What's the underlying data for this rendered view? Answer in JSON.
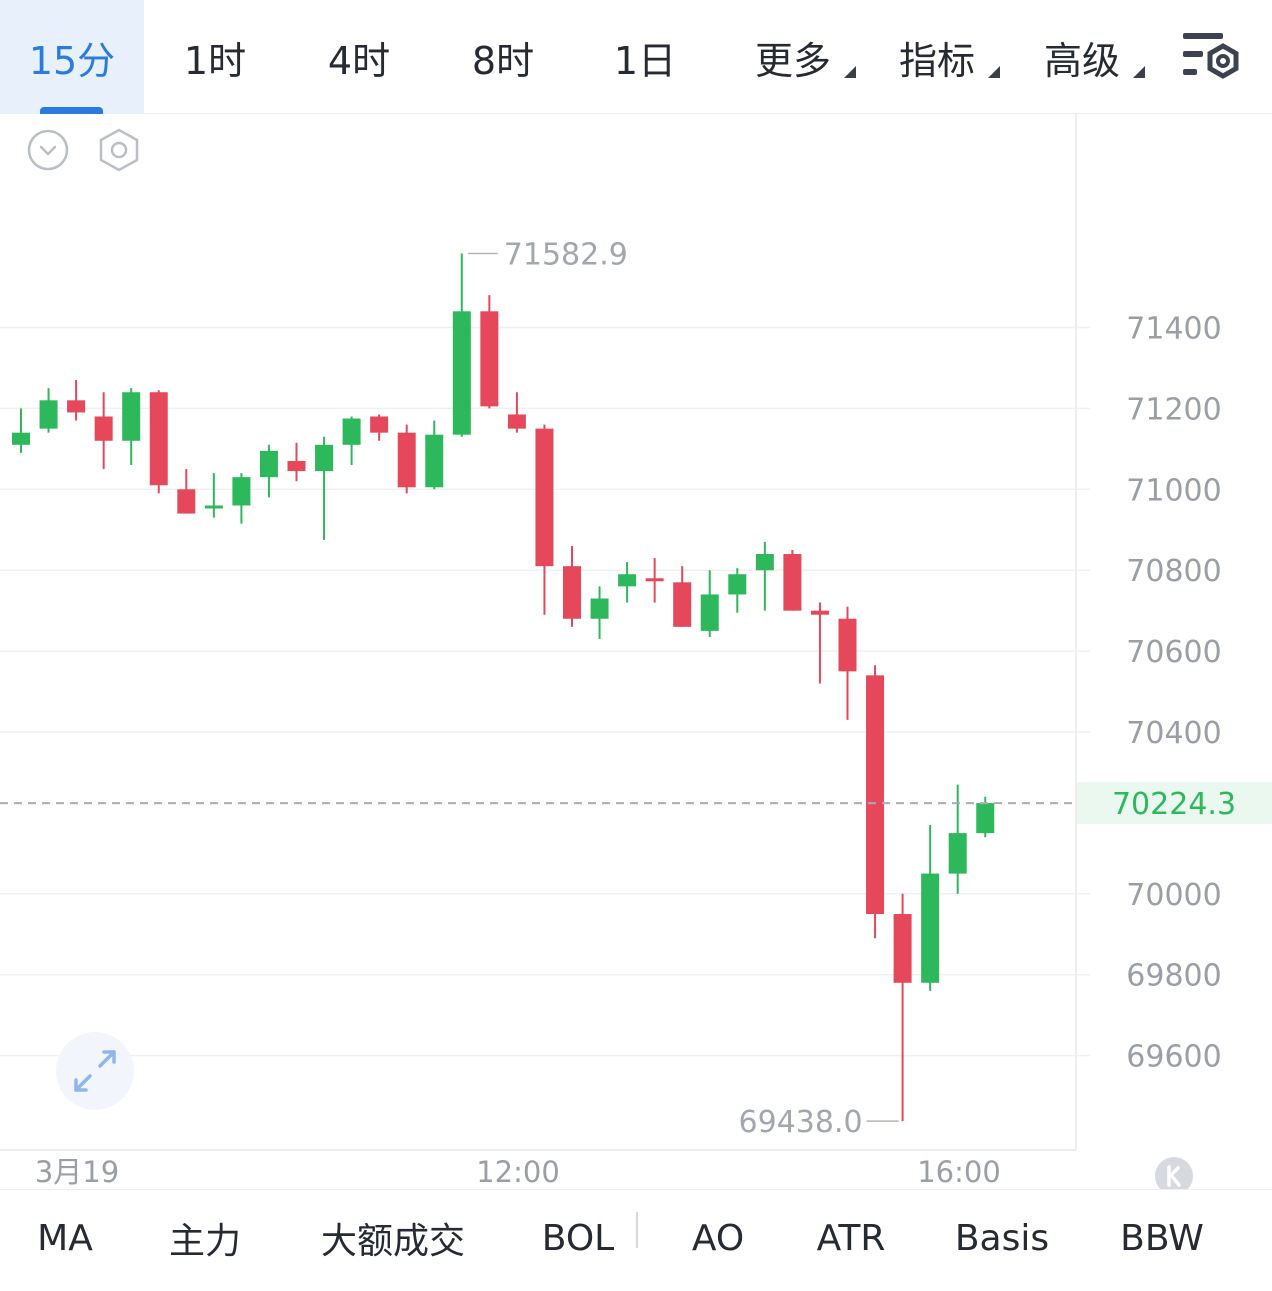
{
  "timeframes": {
    "items": [
      {
        "label": "15分",
        "active": true
      },
      {
        "label": "1时"
      },
      {
        "label": "4时"
      },
      {
        "label": "8时"
      },
      {
        "label": "1日"
      },
      {
        "label": "更多",
        "dropdown": true
      },
      {
        "label": "指标",
        "dropdown": true
      },
      {
        "label": "高级",
        "dropdown": true
      }
    ],
    "settings_icon": "chart-settings-icon"
  },
  "tools": {
    "collapse_icon": "chevron-down-circle-icon",
    "settings_icon": "hexagon-settings-icon",
    "expand_icon": "expand-arrows-icon",
    "reset_icon": "k-badge-icon"
  },
  "chart_data": {
    "type": "candlestick",
    "y_ticks": [
      "71400",
      "71200",
      "71000",
      "70800",
      "70600",
      "70400",
      "70000",
      "69800",
      "69600"
    ],
    "x_ticks": [
      "3月19",
      "12:00",
      "16:00"
    ],
    "high_label": "71582.9",
    "low_label": "69438.0",
    "current_price": "70224.3",
    "grid": true,
    "colors": {
      "up": "#2eb85c",
      "down": "#e5485b",
      "current": "#2eb85c"
    },
    "candles": [
      {
        "o": 71110,
        "h": 71200,
        "l": 71090,
        "c": 71140
      },
      {
        "o": 71150,
        "h": 71250,
        "l": 71140,
        "c": 71220
      },
      {
        "o": 71220,
        "h": 71270,
        "l": 71170,
        "c": 71190
      },
      {
        "o": 71180,
        "h": 71240,
        "l": 71050,
        "c": 71120
      },
      {
        "o": 71120,
        "h": 71250,
        "l": 71060,
        "c": 71240
      },
      {
        "o": 71240,
        "h": 71245,
        "l": 70990,
        "c": 71010
      },
      {
        "o": 71000,
        "h": 71050,
        "l": 70940,
        "c": 70940
      },
      {
        "o": 70960,
        "h": 71040,
        "l": 70930,
        "c": 70960
      },
      {
        "o": 70960,
        "h": 71040,
        "l": 70915,
        "c": 71030
      },
      {
        "o": 71030,
        "h": 71110,
        "l": 70980,
        "c": 71095
      },
      {
        "o": 71070,
        "h": 71115,
        "l": 71020,
        "c": 71045
      },
      {
        "o": 71045,
        "h": 71130,
        "l": 70875,
        "c": 71110
      },
      {
        "o": 71110,
        "h": 71180,
        "l": 71060,
        "c": 71175
      },
      {
        "o": 71180,
        "h": 71185,
        "l": 71120,
        "c": 71140
      },
      {
        "o": 71140,
        "h": 71160,
        "l": 70990,
        "c": 71005
      },
      {
        "o": 71005,
        "h": 71170,
        "l": 71000,
        "c": 71135
      },
      {
        "o": 71135,
        "h": 71583,
        "l": 71130,
        "c": 71440
      },
      {
        "o": 71440,
        "h": 71480,
        "l": 71200,
        "c": 71205
      },
      {
        "o": 71185,
        "h": 71240,
        "l": 71140,
        "c": 71150
      },
      {
        "o": 71150,
        "h": 71160,
        "l": 70690,
        "c": 70810
      },
      {
        "o": 70810,
        "h": 70860,
        "l": 70660,
        "c": 70680
      },
      {
        "o": 70680,
        "h": 70760,
        "l": 70630,
        "c": 70730
      },
      {
        "o": 70760,
        "h": 70820,
        "l": 70720,
        "c": 70790
      },
      {
        "o": 70780,
        "h": 70830,
        "l": 70720,
        "c": 70775
      },
      {
        "o": 70770,
        "h": 70810,
        "l": 70660,
        "c": 70660
      },
      {
        "o": 70650,
        "h": 70800,
        "l": 70635,
        "c": 70740
      },
      {
        "o": 70740,
        "h": 70805,
        "l": 70695,
        "c": 70790
      },
      {
        "o": 70800,
        "h": 70870,
        "l": 70700,
        "c": 70840
      },
      {
        "o": 70840,
        "h": 70850,
        "l": 70700,
        "c": 70700
      },
      {
        "o": 70700,
        "h": 70720,
        "l": 70520,
        "c": 70690
      },
      {
        "o": 70680,
        "h": 70710,
        "l": 70430,
        "c": 70550
      },
      {
        "o": 70540,
        "h": 70565,
        "l": 69890,
        "c": 69950
      },
      {
        "o": 69950,
        "h": 70000,
        "l": 69438,
        "c": 69780
      },
      {
        "o": 69780,
        "h": 70170,
        "l": 69760,
        "c": 70050
      },
      {
        "o": 70050,
        "h": 70270,
        "l": 70000,
        "c": 70150
      },
      {
        "o": 70150,
        "h": 70240,
        "l": 70140,
        "c": 70224.3
      }
    ]
  },
  "indicators": {
    "items": [
      "MA",
      "主力",
      "大额成交",
      "BOL",
      "AO",
      "ATR",
      "Basis",
      "BBW"
    ]
  }
}
